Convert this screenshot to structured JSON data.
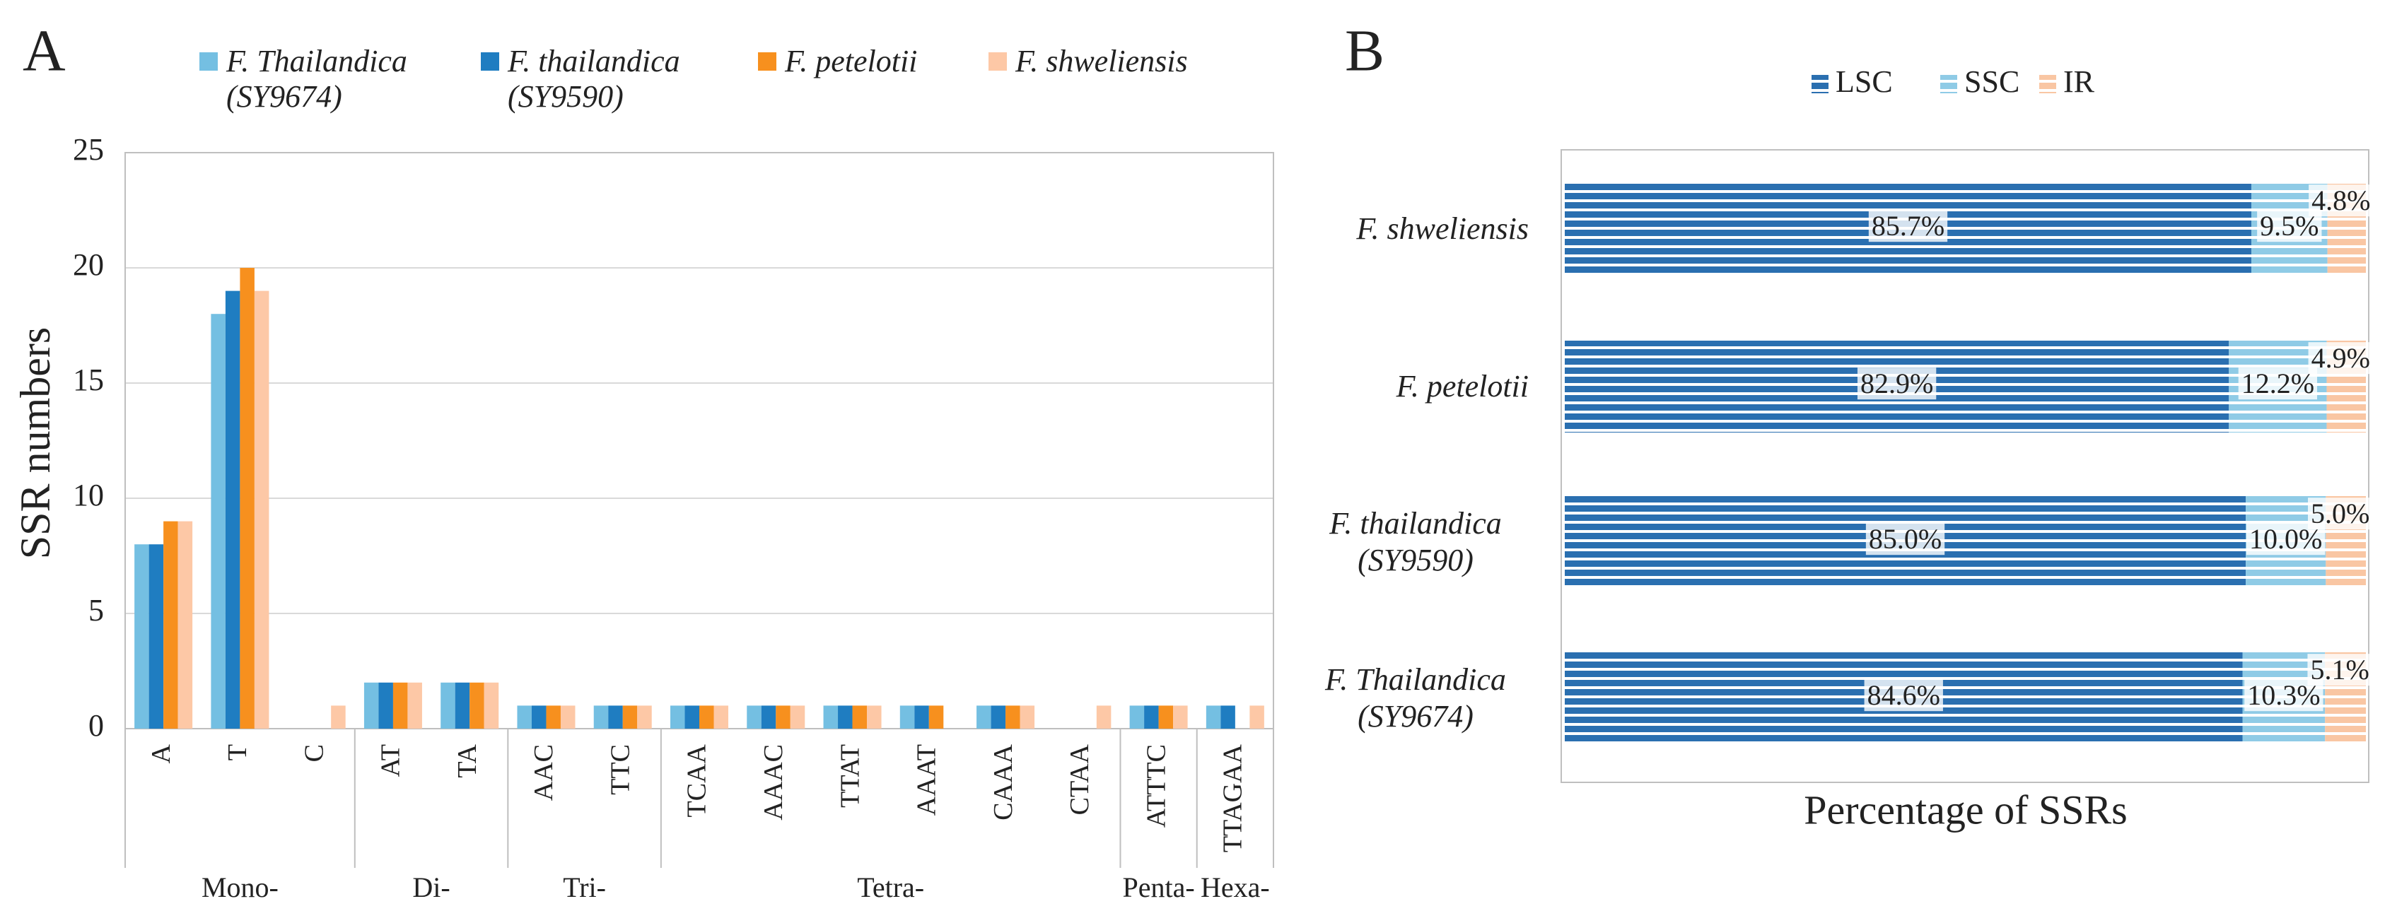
{
  "chart_data": [
    {
      "type": "bar",
      "panel": "A",
      "ylabel": "SSR numbers",
      "categories": [
        "A",
        "T",
        "C",
        "AT",
        "TA",
        "AAC",
        "TTC",
        "TCAA",
        "AAAC",
        "TTAT",
        "AAAT",
        "CAAA",
        "CTAA",
        "ATTTC",
        "TTAGAA"
      ],
      "groups": [
        {
          "label": "Mono-",
          "categories": [
            "A",
            "T",
            "C"
          ]
        },
        {
          "label": "Di-",
          "categories": [
            "AT",
            "TA"
          ]
        },
        {
          "label": "Tri-",
          "categories": [
            "AAC",
            "TTC"
          ]
        },
        {
          "label": "Tetra-",
          "categories": [
            "TCAA",
            "AAAC",
            "TTAT",
            "AAAT",
            "CAAA",
            "CTAA"
          ]
        },
        {
          "label": "Penta-",
          "categories": [
            "ATTTC"
          ]
        },
        {
          "label": "Hexa-",
          "categories": [
            "TTAGAA"
          ]
        }
      ],
      "series": [
        {
          "name": "F. Thailandica (SY9674)",
          "color": "#74bfe2",
          "values": [
            8,
            18,
            0,
            2,
            2,
            1,
            1,
            1,
            1,
            1,
            1,
            1,
            0,
            1,
            1
          ]
        },
        {
          "name": "F. thailandica (SY9590)",
          "color": "#1f7dc1",
          "values": [
            8,
            19,
            0,
            2,
            2,
            1,
            1,
            1,
            1,
            1,
            1,
            1,
            0,
            1,
            1
          ]
        },
        {
          "name": "F. petelotii",
          "color": "#f7901e",
          "values": [
            9,
            20,
            0,
            2,
            2,
            1,
            1,
            1,
            1,
            1,
            1,
            1,
            0,
            1,
            0
          ]
        },
        {
          "name": "F. shweliensis",
          "color": "#fdc8a6",
          "values": [
            9,
            19,
            1,
            2,
            2,
            1,
            1,
            1,
            1,
            1,
            0,
            1,
            1,
            1,
            1
          ]
        }
      ],
      "ylim": [
        0,
        25
      ],
      "yticks": [
        0,
        5,
        10,
        15,
        20,
        25
      ],
      "grid": true
    },
    {
      "type": "stacked-barh",
      "panel": "B",
      "xlabel": "Percentage of SSRs",
      "categories": [
        "F. shweliensis",
        "F. petelotii",
        "F. thailandica (SY9590)",
        "F. Thailandica (SY9674)"
      ],
      "series": [
        {
          "name": "LSC",
          "color": "#2a6fb0",
          "values": [
            85.7,
            82.9,
            85.0,
            84.6
          ],
          "value_labels": [
            "85.7%",
            "82.9%",
            "85.0%",
            "84.6%"
          ]
        },
        {
          "name": "SSC",
          "color": "#8fcbe6",
          "values": [
            9.5,
            12.2,
            10.0,
            10.3
          ],
          "value_labels": [
            "9.5%",
            "12.2%",
            "10.0%",
            "10.3%"
          ]
        },
        {
          "name": "IR",
          "color": "#f9c6a3",
          "values": [
            4.8,
            4.9,
            5.0,
            5.1
          ],
          "value_labels": [
            "4.8%",
            "4.9%",
            "5.0%",
            "5.1%"
          ]
        }
      ],
      "xlim": [
        0,
        100
      ]
    }
  ]
}
